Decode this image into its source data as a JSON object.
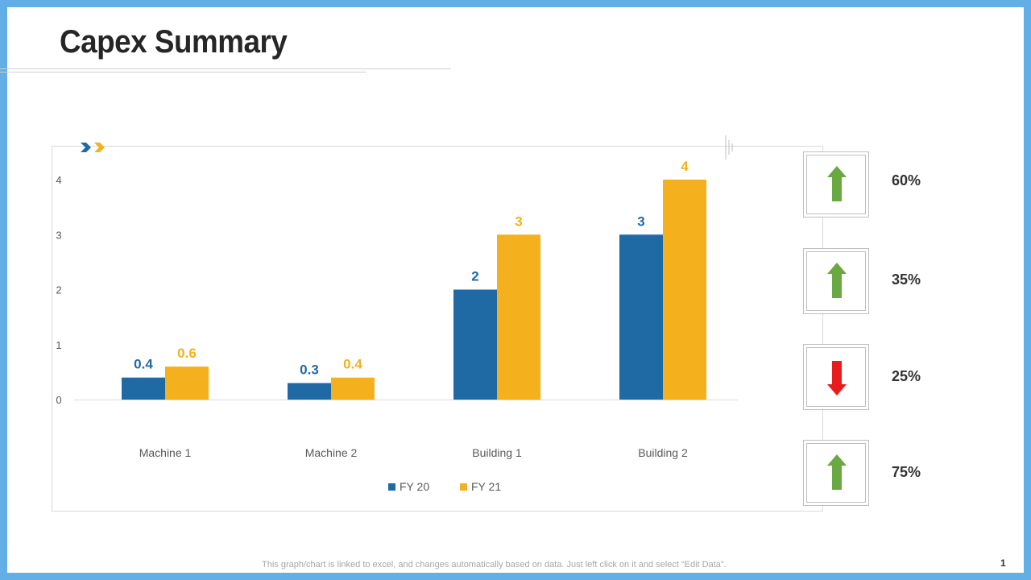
{
  "slide": {
    "title": "Capex Summary",
    "footer_note": "This graph/chart is linked to excel, and changes automatically based on data. Just left click on it and select “Edit Data”.",
    "page_number": "1"
  },
  "chart_data": {
    "type": "bar",
    "categories": [
      "Machine 1",
      "Machine 2",
      "Building 1",
      "Building 2"
    ],
    "series": [
      {
        "name": "FY 20",
        "values": [
          0.4,
          0.3,
          2,
          3
        ],
        "labels": [
          "0.4",
          "0.3",
          "2",
          "3"
        ],
        "color": "#1f6aa5"
      },
      {
        "name": "FY 21",
        "values": [
          0.6,
          0.4,
          3,
          4
        ],
        "labels": [
          "0.6",
          "0.4",
          "3",
          "4"
        ],
        "color": "#f5b11d"
      }
    ],
    "ylim": [
      0,
      4
    ],
    "yticks": [
      "0",
      "1",
      "2",
      "3",
      "4"
    ],
    "legend_position": "bottom",
    "title": "",
    "xlabel": "",
    "ylabel": ""
  },
  "indicators": [
    {
      "direction": "up",
      "color": "#6aa842",
      "value": "60%"
    },
    {
      "direction": "up",
      "color": "#6aa842",
      "value": "35%"
    },
    {
      "direction": "down",
      "color": "#e81c1c",
      "value": "25%"
    },
    {
      "direction": "up",
      "color": "#6aa842",
      "value": "75%"
    }
  ],
  "colors": {
    "frame": "#62aee6",
    "chevron_blue": "#1f6aa5",
    "chevron_orange": "#f5b11d"
  }
}
